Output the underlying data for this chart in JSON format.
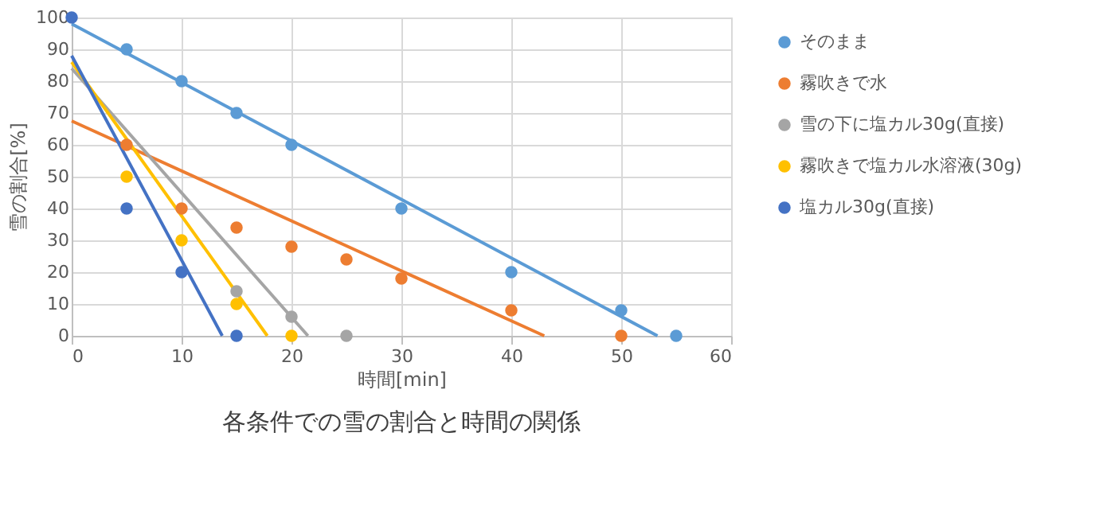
{
  "chart_data": {
    "type": "scatter",
    "title": "各条件での雪の割合と時間の関係",
    "xlabel": "時間[min]",
    "ylabel": "雪の割合[%]",
    "xlim": [
      0,
      60
    ],
    "xticks": [
      0,
      10,
      20,
      30,
      40,
      50,
      60
    ],
    "ylim": [
      0,
      100
    ],
    "yticks": [
      0,
      10,
      20,
      30,
      40,
      50,
      60,
      70,
      80,
      90,
      100
    ],
    "grid": true,
    "legend": "right",
    "marker": "circle",
    "series": [
      {
        "name": "そのまま",
        "color": "#5b9bd5",
        "x": [
          5,
          10,
          15,
          20,
          30,
          40,
          50,
          55
        ],
        "values": [
          90,
          80,
          70,
          60,
          40,
          20,
          8,
          0
        ]
      },
      {
        "name": "霧吹きで水",
        "color": "#ed7d31",
        "x": [
          5,
          10,
          15,
          20,
          25,
          30,
          40,
          50
        ],
        "values": [
          60,
          40,
          34,
          28,
          24,
          18,
          8,
          0
        ]
      },
      {
        "name": "雪の下に塩カル30g(直接)",
        "color": "#a5a5a5",
        "x": [
          15,
          20,
          25
        ],
        "values": [
          14,
          6,
          0
        ]
      },
      {
        "name": "霧吹きで塩カル水溶液(30g)",
        "color": "#ffc000",
        "x": [
          5,
          10,
          15,
          20
        ],
        "values": [
          50,
          30,
          10,
          0
        ]
      },
      {
        "name": "塩カル30g(直接)",
        "color": "#4472c4",
        "x": [
          0,
          5,
          10,
          15
        ],
        "values": [
          100,
          40,
          20,
          0
        ]
      },
      {
        "color": "#5b9bd5",
        "type": "line",
        "marker": "none",
        "x": [
          0,
          53.3
        ],
        "values": [
          98,
          0
        ]
      },
      {
        "color": "#ed7d31",
        "type": "line",
        "marker": "none",
        "x": [
          0,
          43
        ],
        "values": [
          67.5,
          0
        ]
      },
      {
        "color": "#a5a5a5",
        "type": "line",
        "marker": "none",
        "x": [
          0,
          21.5
        ],
        "values": [
          84,
          0
        ]
      },
      {
        "color": "#ffc000",
        "type": "line",
        "marker": "none",
        "x": [
          0,
          17.8
        ],
        "values": [
          86,
          0
        ]
      },
      {
        "color": "#4472c4",
        "type": "line",
        "marker": "none",
        "x": [
          0,
          13.7
        ],
        "values": [
          88,
          0
        ]
      }
    ]
  }
}
